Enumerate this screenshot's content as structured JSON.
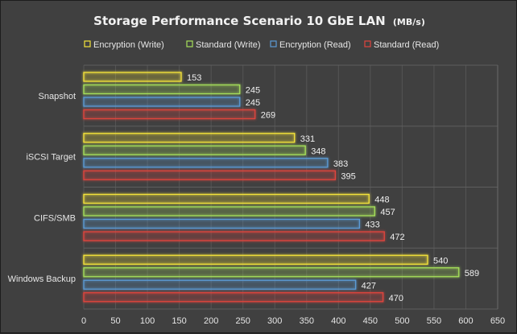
{
  "chart_data": {
    "type": "bar",
    "orientation": "horizontal",
    "title": "Storage  Performance Scenario 10 GbE LAN",
    "title_unit": "(MB/s)",
    "xlabel": "",
    "ylabel": "",
    "categories": [
      "Snapshot",
      "iSCSI Target",
      "CIFS/SMB",
      "Windows Backup"
    ],
    "series": [
      {
        "name": "Encryption (Write)",
        "color": "#f5e43a",
        "values": [
          153,
          331,
          448,
          540
        ]
      },
      {
        "name": "Standard (Write)",
        "color": "#a6e05a",
        "values": [
          245,
          348,
          457,
          589
        ]
      },
      {
        "name": "Encryption (Read)",
        "color": "#5b9bd5",
        "values": [
          245,
          383,
          433,
          427
        ]
      },
      {
        "name": "Standard (Read)",
        "color": "#e0443e",
        "values": [
          269,
          395,
          472,
          470
        ]
      }
    ],
    "xlim": [
      0,
      650
    ],
    "xticks": [
      "0",
      "50",
      "100",
      "150",
      "200",
      "250",
      "300",
      "350",
      "400",
      "450",
      "500",
      "550",
      "600",
      "650"
    ],
    "grid": true,
    "legend_position": "top"
  }
}
